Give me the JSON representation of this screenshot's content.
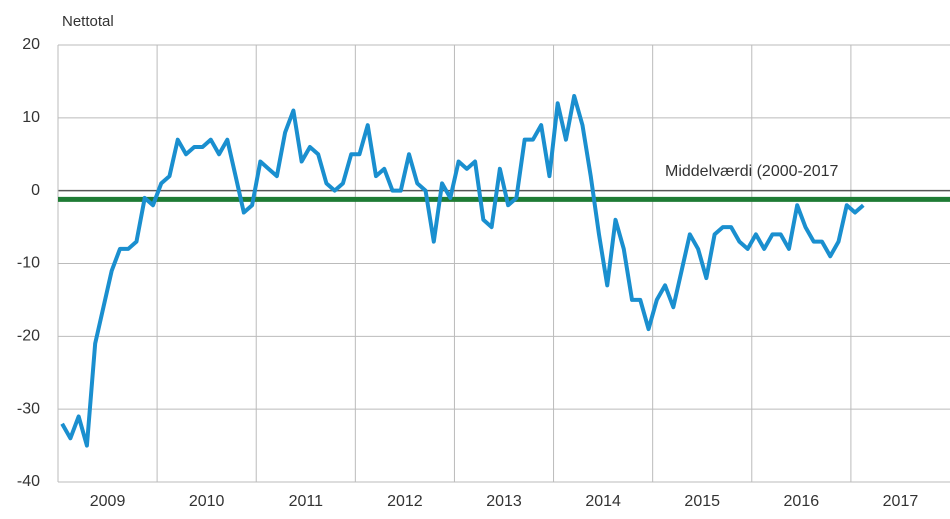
{
  "chart_data": {
    "type": "line",
    "y_axis_label": "Nettotal",
    "categories": [
      null,
      null,
      null,
      null,
      null,
      null,
      "2009",
      null,
      null,
      null,
      null,
      null,
      null,
      null,
      null,
      null,
      null,
      null,
      "2010",
      null,
      null,
      null,
      null,
      null,
      null,
      null,
      null,
      null,
      null,
      null,
      "2011",
      null,
      null,
      null,
      null,
      null,
      null,
      null,
      null,
      null,
      null,
      null,
      "2012",
      null,
      null,
      null,
      null,
      null,
      null,
      null,
      null,
      null,
      null,
      null,
      "2013",
      null,
      null,
      null,
      null,
      null,
      null,
      null,
      null,
      null,
      null,
      null,
      "2014",
      null,
      null,
      null,
      null,
      null,
      null,
      null,
      null,
      null,
      null,
      null,
      "2015",
      null,
      null,
      null,
      null,
      null,
      null,
      null,
      null,
      null,
      null,
      null,
      "2016",
      null,
      null,
      null,
      null,
      null,
      null,
      null,
      null,
      null,
      null,
      null,
      "2017",
      null,
      null,
      null,
      null,
      null
    ],
    "series": [
      {
        "color": "#1a8fcf",
        "values": [
          -32,
          -34,
          -31,
          -35,
          -21,
          -16,
          -11,
          -8,
          -8,
          -7,
          -1,
          -2,
          1,
          2,
          7,
          5,
          6,
          6,
          7,
          5,
          7,
          2,
          -3,
          -2,
          4,
          3,
          2,
          8,
          11,
          4,
          6,
          5,
          1,
          0,
          1,
          5,
          5,
          9,
          2,
          3,
          0,
          0,
          5,
          1,
          0,
          -7,
          1,
          -1,
          4,
          3,
          4,
          -4,
          -5,
          3,
          -2,
          -1,
          7,
          7,
          9,
          2,
          12,
          7,
          13,
          9,
          2,
          -6,
          -13,
          -4,
          -8,
          -15,
          -15,
          -19,
          -15,
          -13,
          -16,
          -11,
          -6,
          -8,
          -12,
          -6,
          -5,
          -5,
          -7,
          -8,
          -6,
          -8,
          -6,
          -6,
          -8,
          -2,
          -5,
          -7,
          -7,
          -9,
          -7,
          -2,
          -3,
          -2,
          null,
          null,
          null,
          null,
          null,
          null,
          null,
          null,
          null,
          null
        ]
      }
    ],
    "reference_line": {
      "label": "Middelværdi (2000-2017",
      "value": -1.2,
      "color": "#1e7b34"
    },
    "ylim": [
      -40,
      20
    ],
    "yticks": [
      -40,
      -30,
      -20,
      -10,
      0,
      10,
      20
    ],
    "grid": true
  }
}
